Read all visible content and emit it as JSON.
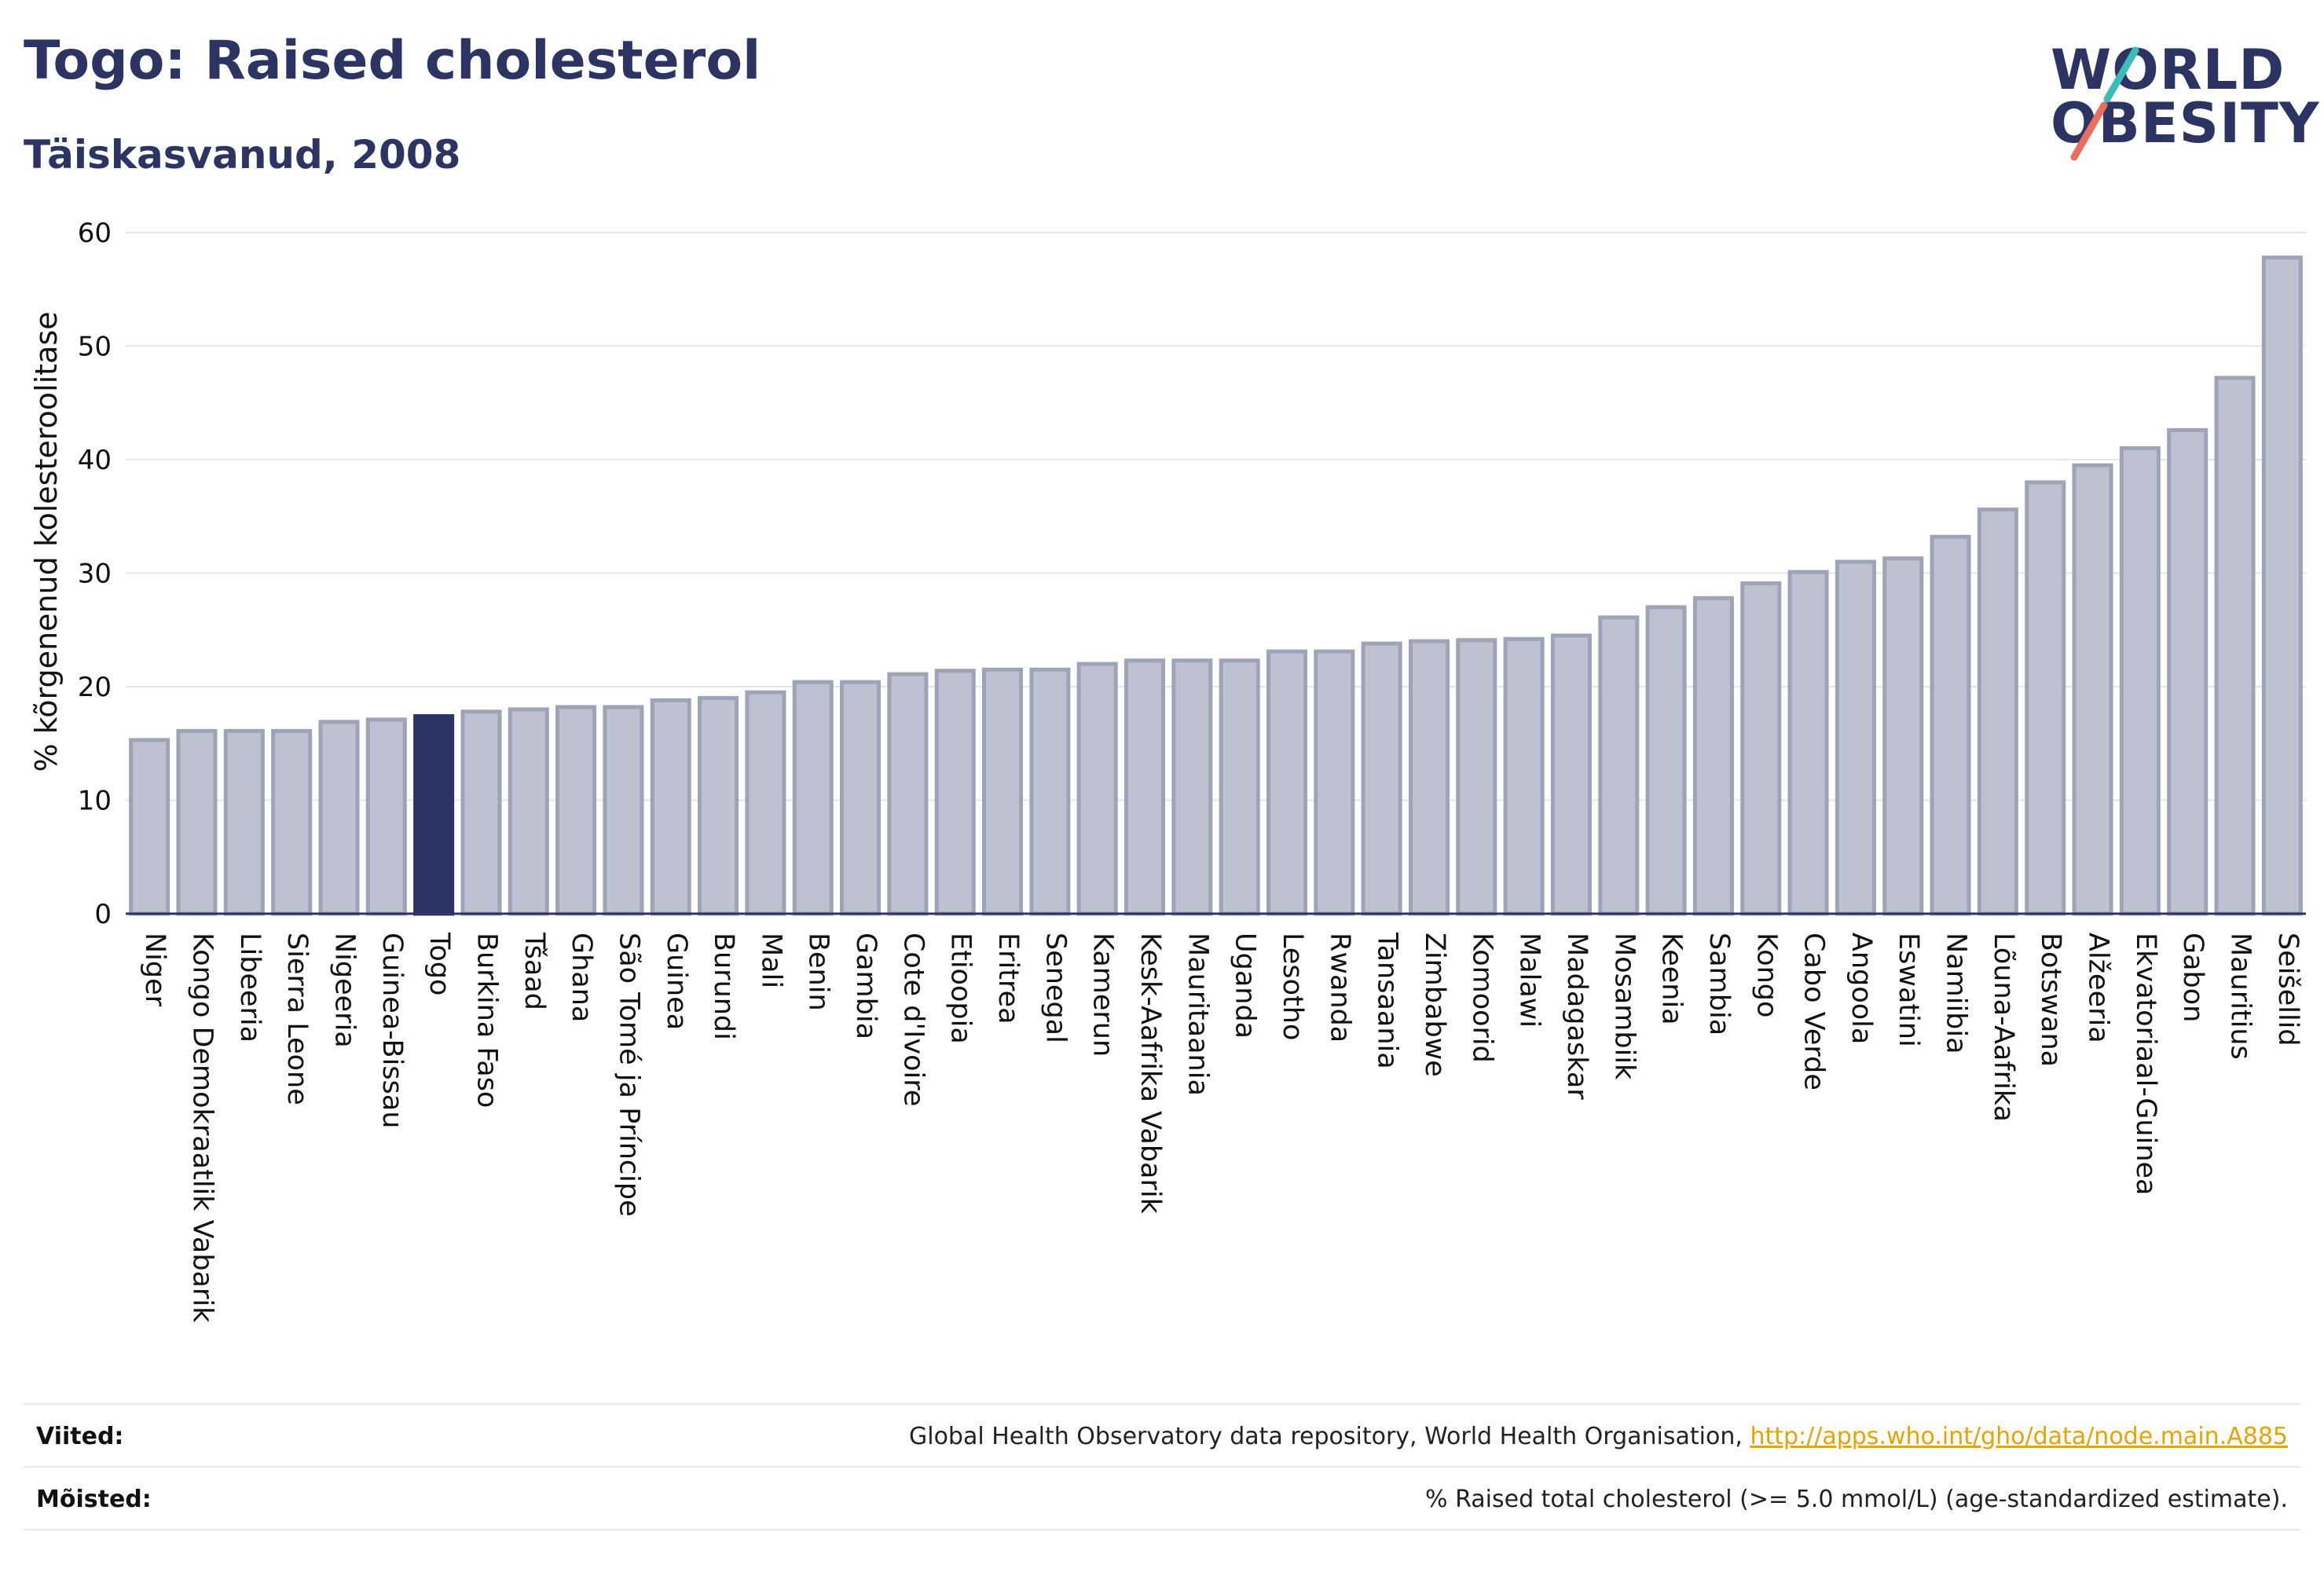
{
  "header": {
    "title": "Togo: Raised cholesterol",
    "subtitle": "Täiskasvanud, 2008"
  },
  "logo": {
    "line1": "WORLD",
    "line2": "OBESITY",
    "colors": {
      "text": "#2b3462",
      "slash_teal": "#3cbcb8",
      "slash_coral": "#e96e5b"
    }
  },
  "colors": {
    "bar_fill": "#bdc1d0",
    "bar_stroke": "#9ea3b8",
    "highlight": "#2b3462",
    "axis": "#2b3462",
    "grid": "#e3e5ee",
    "tick_text": "#111111"
  },
  "chart_data": {
    "type": "bar",
    "title": "Togo: Raised cholesterol",
    "subtitle": "Täiskasvanud, 2008",
    "ylabel": "% kõrgenenud kolesteroolitase",
    "xlabel": "",
    "ylim": [
      0,
      60
    ],
    "yticks": [
      0,
      10,
      20,
      30,
      40,
      50,
      60
    ],
    "grid": true,
    "highlight": "Togo",
    "categories": [
      "Niger",
      "Kongo Demokraatlik Vabarik",
      "Libeeria",
      "Sierra Leone",
      "Nigeeria",
      "Guinea-Bissau",
      "Togo",
      "Burkina Faso",
      "Tšaad",
      "Ghana",
      "São Tomé ja Príncipe",
      "Guinea",
      "Burundi",
      "Mali",
      "Benin",
      "Gambia",
      "Cote d'Ivoire",
      "Etioopia",
      "Eritrea",
      "Senegal",
      "Kamerun",
      "Kesk-Aafrika Vabarik",
      "Mauritaania",
      "Uganda",
      "Lesotho",
      "Rwanda",
      "Tansaania",
      "Zimbabwe",
      "Komoorid",
      "Malawi",
      "Madagaskar",
      "Mosambiik",
      "Keenia",
      "Sambia",
      "Kongo",
      "Cabo Verde",
      "Angoola",
      "Eswatini",
      "Namiibia",
      "Lõuna-Aafrika",
      "Botswana",
      "Alžeeria",
      "Ekvatoriaal-Guinea",
      "Gabon",
      "Mauritius",
      "Seišellid"
    ],
    "values": [
      15.3,
      16.1,
      16.1,
      16.1,
      16.9,
      17.1,
      17.4,
      17.8,
      18.0,
      18.2,
      18.2,
      18.8,
      19.0,
      19.5,
      20.4,
      20.4,
      21.1,
      21.4,
      21.5,
      21.5,
      22.0,
      22.3,
      22.3,
      22.3,
      23.1,
      23.1,
      23.8,
      24.0,
      24.1,
      24.2,
      24.5,
      26.1,
      27.0,
      27.8,
      29.1,
      30.1,
      31.0,
      31.3,
      33.2,
      35.6,
      38.0,
      39.5,
      41.0,
      42.6,
      47.2,
      57.8
    ]
  },
  "footer": {
    "sources_label": "Viited:",
    "sources_text": "Global Health Observatory data repository, World Health Organisation,",
    "sources_link": "http://apps.who.int/gho/data/node.main.A885",
    "definitions_label": "Mõisted:",
    "definitions_text": "% Raised total cholesterol (>= 5.0 mmol/L) (age-standardized estimate)."
  }
}
